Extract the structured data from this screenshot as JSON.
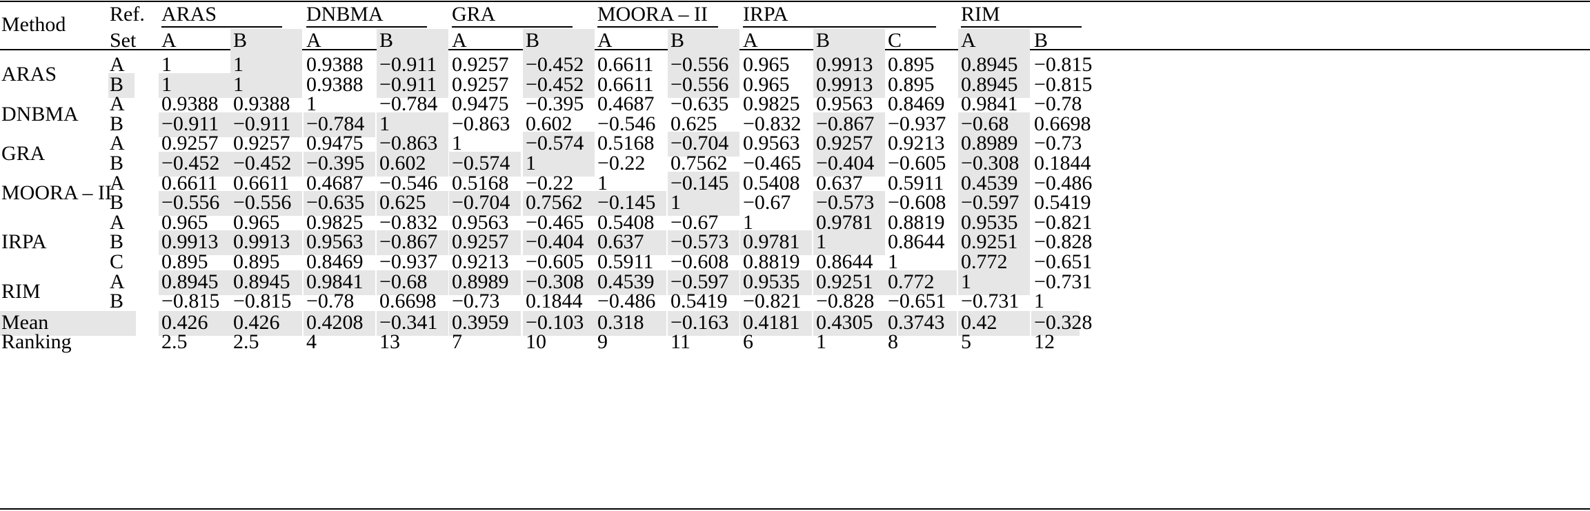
{
  "header": {
    "method": "Method",
    "ref": "Ref.",
    "set": "Set",
    "groups": [
      {
        "name": "ARAS",
        "sets": [
          "A",
          "B"
        ]
      },
      {
        "name": "DNBMA",
        "sets": [
          "A",
          "B"
        ]
      },
      {
        "name": "GRA",
        "sets": [
          "A",
          "B"
        ]
      },
      {
        "name": "MOORA – II",
        "sets": [
          "A",
          "B"
        ]
      },
      {
        "name": "IRPA",
        "sets": [
          "A",
          "B",
          "C"
        ]
      },
      {
        "name": "RIM",
        "sets": [
          "A",
          "B"
        ]
      }
    ]
  },
  "row_groups": [
    {
      "label": "ARAS",
      "rows": [
        {
          "set": "A",
          "values": [
            "1",
            "1",
            "0.9388",
            "−0.911",
            "0.9257",
            "−0.452",
            "0.6611",
            "−0.556",
            "0.965",
            "0.9913",
            "0.895",
            "0.8945",
            "−0.815"
          ]
        },
        {
          "set": "B",
          "values": [
            "1",
            "1",
            "0.9388",
            "−0.911",
            "0.9257",
            "−0.452",
            "0.6611",
            "−0.556",
            "0.965",
            "0.9913",
            "0.895",
            "0.8945",
            "−0.815"
          ]
        }
      ]
    },
    {
      "label": "DNBMA",
      "rows": [
        {
          "set": "A",
          "values": [
            "0.9388",
            "0.9388",
            "1",
            "−0.784",
            "0.9475",
            "−0.395",
            "0.4687",
            "−0.635",
            "0.9825",
            "0.9563",
            "0.8469",
            "0.9841",
            "−0.78"
          ]
        },
        {
          "set": "B",
          "values": [
            "−0.911",
            "−0.911",
            "−0.784",
            "1",
            "−0.863",
            "0.602",
            "−0.546",
            "0.625",
            "−0.832",
            "−0.867",
            "−0.937",
            "−0.68",
            "0.6698"
          ]
        }
      ]
    },
    {
      "label": "GRA",
      "rows": [
        {
          "set": "A",
          "values": [
            "0.9257",
            "0.9257",
            "0.9475",
            "−0.863",
            "1",
            "−0.574",
            "0.5168",
            "−0.704",
            "0.9563",
            "0.9257",
            "0.9213",
            "0.8989",
            "−0.73"
          ]
        },
        {
          "set": "B",
          "values": [
            "−0.452",
            "−0.452",
            "−0.395",
            "0.602",
            "−0.574",
            "1",
            "−0.22",
            "0.7562",
            "−0.465",
            "−0.404",
            "−0.605",
            "−0.308",
            "0.1844"
          ]
        }
      ]
    },
    {
      "label": "MOORA – II",
      "rows": [
        {
          "set": "A",
          "values": [
            "0.6611",
            "0.6611",
            "0.4687",
            "−0.546",
            "0.5168",
            "−0.22",
            "1",
            "−0.145",
            "0.5408",
            "0.637",
            "0.5911",
            "0.4539",
            "−0.486"
          ]
        },
        {
          "set": "B",
          "values": [
            "−0.556",
            "−0.556",
            "−0.635",
            "0.625",
            "−0.704",
            "0.7562",
            "−0.145",
            "1",
            "−0.67",
            "−0.573",
            "−0.608",
            "−0.597",
            "0.5419"
          ]
        }
      ]
    },
    {
      "label": "IRPA",
      "rows": [
        {
          "set": "A",
          "values": [
            "0.965",
            "0.965",
            "0.9825",
            "−0.832",
            "0.9563",
            "−0.465",
            "0.5408",
            "−0.67",
            "1",
            "0.9781",
            "0.8819",
            "0.9535",
            "−0.821"
          ]
        },
        {
          "set": "B",
          "values": [
            "0.9913",
            "0.9913",
            "0.9563",
            "−0.867",
            "0.9257",
            "−0.404",
            "0.637",
            "−0.573",
            "0.9781",
            "1",
            "0.8644",
            "0.9251",
            "−0.828"
          ]
        },
        {
          "set": "C",
          "values": [
            "0.895",
            "0.895",
            "0.8469",
            "−0.937",
            "0.9213",
            "−0.605",
            "0.5911",
            "−0.608",
            "0.8819",
            "0.8644",
            "1",
            "0.772",
            "−0.651"
          ]
        }
      ]
    },
    {
      "label": "RIM",
      "rows": [
        {
          "set": "A",
          "values": [
            "0.8945",
            "0.8945",
            "0.9841",
            "−0.68",
            "0.8989",
            "−0.308",
            "0.4539",
            "−0.597",
            "0.9535",
            "0.9251",
            "0.772",
            "1",
            "−0.731"
          ]
        },
        {
          "set": "B",
          "values": [
            "−0.815",
            "−0.815",
            "−0.78",
            "0.6698",
            "−0.73",
            "0.1844",
            "−0.486",
            "0.5419",
            "−0.821",
            "−0.828",
            "−0.651",
            "−0.731",
            "1"
          ]
        }
      ]
    }
  ],
  "summary": [
    {
      "label": "Mean",
      "values": [
        "0.426",
        "0.426",
        "0.4208",
        "−0.341",
        "0.3959",
        "−0.103",
        "0.318",
        "−0.163",
        "0.4181",
        "0.4305",
        "0.3743",
        "0.42",
        "−0.328"
      ]
    },
    {
      "label": "Ranking",
      "values": [
        "2.5",
        "2.5",
        "4",
        "13",
        "7",
        "10",
        "9",
        "11",
        "6",
        "1",
        "8",
        "5",
        "12"
      ]
    }
  ],
  "shading": {
    "color": "#e6e6e6",
    "header_set_cells": [
      [
        0,
        1
      ],
      [
        1,
        1
      ],
      [
        2,
        1
      ],
      [
        3,
        1
      ],
      [
        4,
        1
      ],
      [
        5,
        0
      ]
    ],
    "body_cells": [
      [
        0,
        1
      ],
      [
        0,
        3
      ],
      [
        0,
        5
      ],
      [
        0,
        7
      ],
      [
        0,
        9
      ],
      [
        0,
        11
      ],
      [
        1,
        -1
      ],
      [
        1,
        0
      ],
      [
        1,
        1
      ],
      [
        1,
        3
      ],
      [
        1,
        5
      ],
      [
        1,
        7
      ],
      [
        1,
        9
      ],
      [
        1,
        11
      ],
      [
        3,
        0
      ],
      [
        3,
        1
      ],
      [
        3,
        2
      ],
      [
        3,
        3
      ],
      [
        3,
        9
      ],
      [
        3,
        11
      ],
      [
        4,
        3
      ],
      [
        4,
        5
      ],
      [
        4,
        7
      ],
      [
        4,
        9
      ],
      [
        4,
        11
      ],
      [
        5,
        0
      ],
      [
        5,
        1
      ],
      [
        5,
        2
      ],
      [
        5,
        3
      ],
      [
        5,
        4
      ],
      [
        5,
        5
      ],
      [
        5,
        9
      ],
      [
        5,
        11
      ],
      [
        6,
        7
      ],
      [
        6,
        11
      ],
      [
        7,
        0
      ],
      [
        7,
        1
      ],
      [
        7,
        2
      ],
      [
        7,
        3
      ],
      [
        7,
        4
      ],
      [
        7,
        5
      ],
      [
        7,
        6
      ],
      [
        7,
        7
      ],
      [
        7,
        9
      ],
      [
        7,
        11
      ],
      [
        8,
        9
      ],
      [
        8,
        11
      ],
      [
        9,
        0
      ],
      [
        9,
        1
      ],
      [
        9,
        2
      ],
      [
        9,
        3
      ],
      [
        9,
        4
      ],
      [
        9,
        5
      ],
      [
        9,
        6
      ],
      [
        9,
        7
      ],
      [
        9,
        8
      ],
      [
        9,
        9
      ],
      [
        9,
        11
      ],
      [
        10,
        11
      ],
      [
        11,
        0
      ],
      [
        11,
        1
      ],
      [
        11,
        2
      ],
      [
        11,
        3
      ],
      [
        11,
        4
      ],
      [
        11,
        5
      ],
      [
        11,
        6
      ],
      [
        11,
        7
      ],
      [
        11,
        8
      ],
      [
        11,
        9
      ],
      [
        11,
        10
      ],
      [
        11,
        11
      ]
    ],
    "summary_cells": [
      [
        0,
        -2
      ],
      [
        0,
        0
      ],
      [
        0,
        1
      ],
      [
        0,
        2
      ],
      [
        0,
        3
      ],
      [
        0,
        4
      ],
      [
        0,
        5
      ],
      [
        0,
        6
      ],
      [
        0,
        7
      ],
      [
        0,
        8
      ],
      [
        0,
        9
      ],
      [
        0,
        10
      ],
      [
        0,
        11
      ],
      [
        0,
        12
      ]
    ]
  }
}
